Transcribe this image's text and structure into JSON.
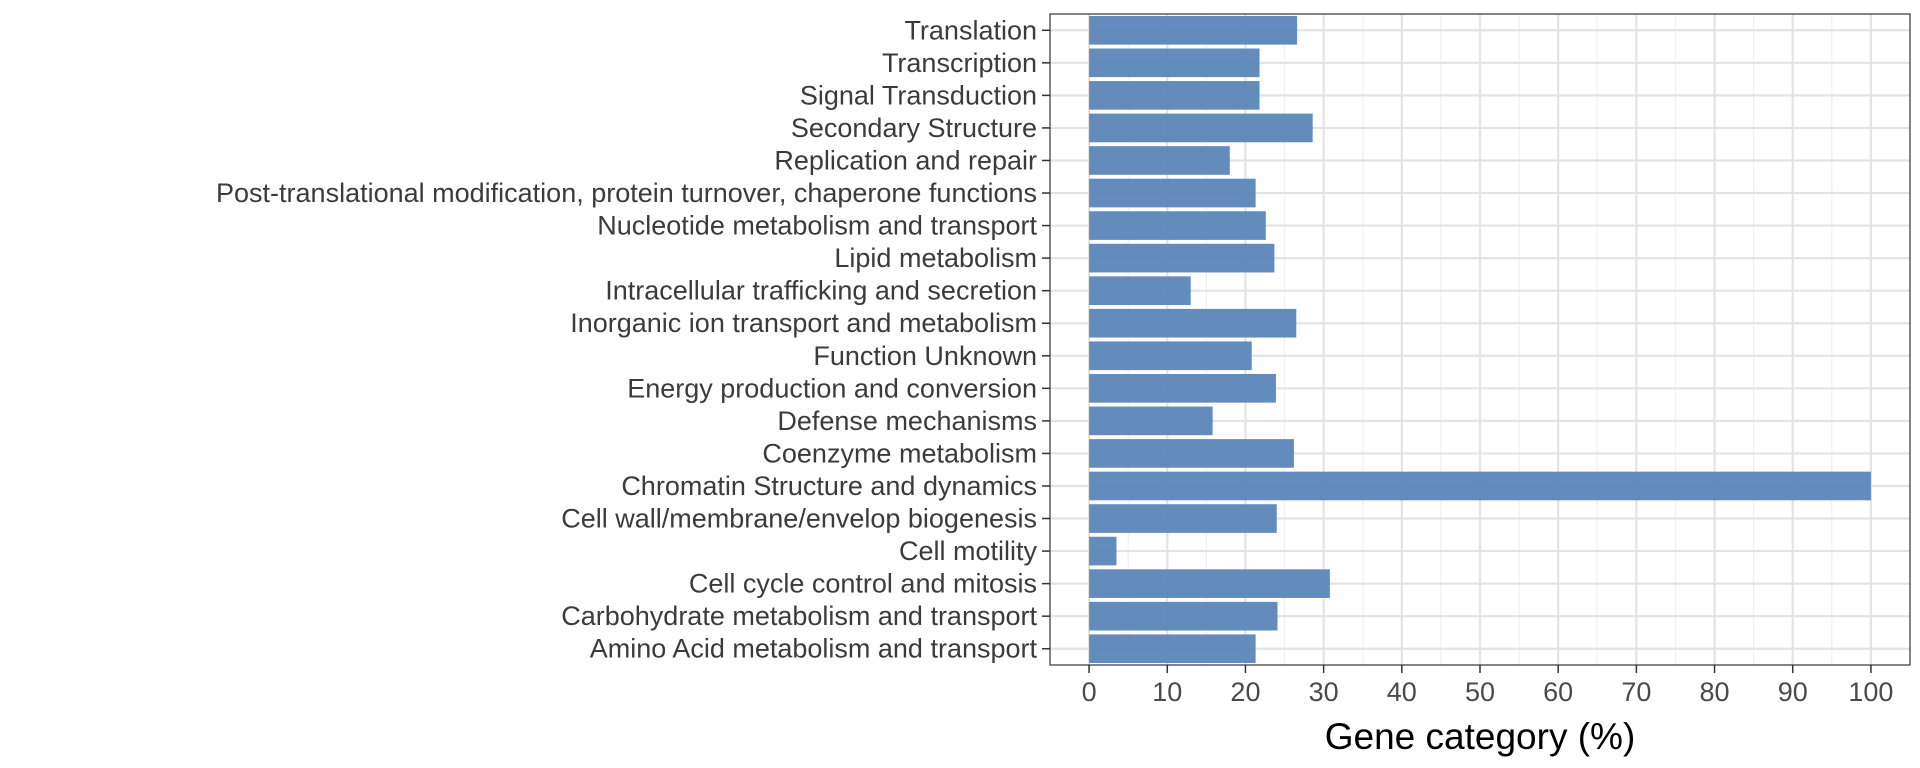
{
  "chart_data": {
    "type": "bar",
    "orientation": "horizontal",
    "title": "",
    "xlabel": "Gene category (%)",
    "ylabel": "",
    "xlim": [
      0,
      100
    ],
    "x_ticks": [
      0,
      10,
      20,
      30,
      40,
      50,
      60,
      70,
      80,
      90,
      100
    ],
    "grid": true,
    "legend": "none",
    "bar_color": "#5b86b8",
    "categories": [
      "Translation",
      "Transcription",
      "Signal Transduction",
      "Secondary Structure",
      "Replication and repair",
      "Post-translational modification, protein turnover, chaperone functions",
      "Nucleotide metabolism and transport",
      "Lipid metabolism",
      "Intracellular trafficking and secretion",
      "Inorganic ion transport and metabolism",
      "Function Unknown",
      "Energy production and conversion",
      "Defense mechanisms",
      "Coenzyme metabolism",
      "Chromatin Structure and dynamics",
      "Cell wall/membrane/envelop biogenesis",
      "Cell motility",
      "Cell cycle control and mitosis",
      "Carbohydrate metabolism and transport",
      "Amino Acid metabolism and transport"
    ],
    "values": [
      26.6,
      21.8,
      21.8,
      28.6,
      18.0,
      21.3,
      22.6,
      23.7,
      13.0,
      26.5,
      20.8,
      23.9,
      15.8,
      26.2,
      100.0,
      24.0,
      3.5,
      30.8,
      24.1,
      21.3
    ]
  }
}
